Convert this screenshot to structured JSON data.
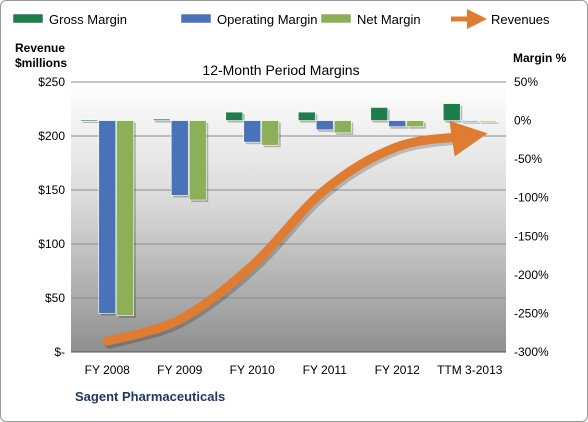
{
  "chart_data": {
    "type": "bar",
    "title": "12-Month Period Margins",
    "left_axis_title_line1": "Revenue",
    "left_axis_title_line2": "$millions",
    "right_axis_title": "Margin %",
    "categories": [
      "FY 2008",
      "FY 2009",
      "FY 2010",
      "FY 2011",
      "FY 2012",
      "TTM 3-2013"
    ],
    "margin_series": [
      {
        "name": "Gross Margin",
        "color": "#1e7d4a",
        "values": [
          1,
          2,
          11,
          11,
          17,
          22
        ]
      },
      {
        "name": "Operating Margin",
        "color": "#4a72b8",
        "values": [
          -250,
          -97,
          -28,
          -12,
          -8,
          -1
        ]
      },
      {
        "name": "Net Margin",
        "color": "#8cb05a",
        "values": [
          -253,
          -103,
          -32,
          -16,
          -8,
          -1
        ]
      }
    ],
    "revenue_series": {
      "name": "Revenues",
      "color": "#e07b32",
      "values": [
        10,
        30,
        80,
        150,
        190,
        200
      ]
    },
    "left_ticks": [
      "$-",
      "$50",
      "$100",
      "$150",
      "$200",
      "$250"
    ],
    "left_ylim": [
      0,
      250
    ],
    "right_ticks": [
      "50%",
      "0%",
      "-50%",
      "-100%",
      "-150%",
      "-200%",
      "-250%",
      "-300%"
    ],
    "right_ylim": [
      -300,
      50
    ],
    "legend_position": "top"
  },
  "footer": {
    "company": "Sagent Pharmaceuticals"
  }
}
